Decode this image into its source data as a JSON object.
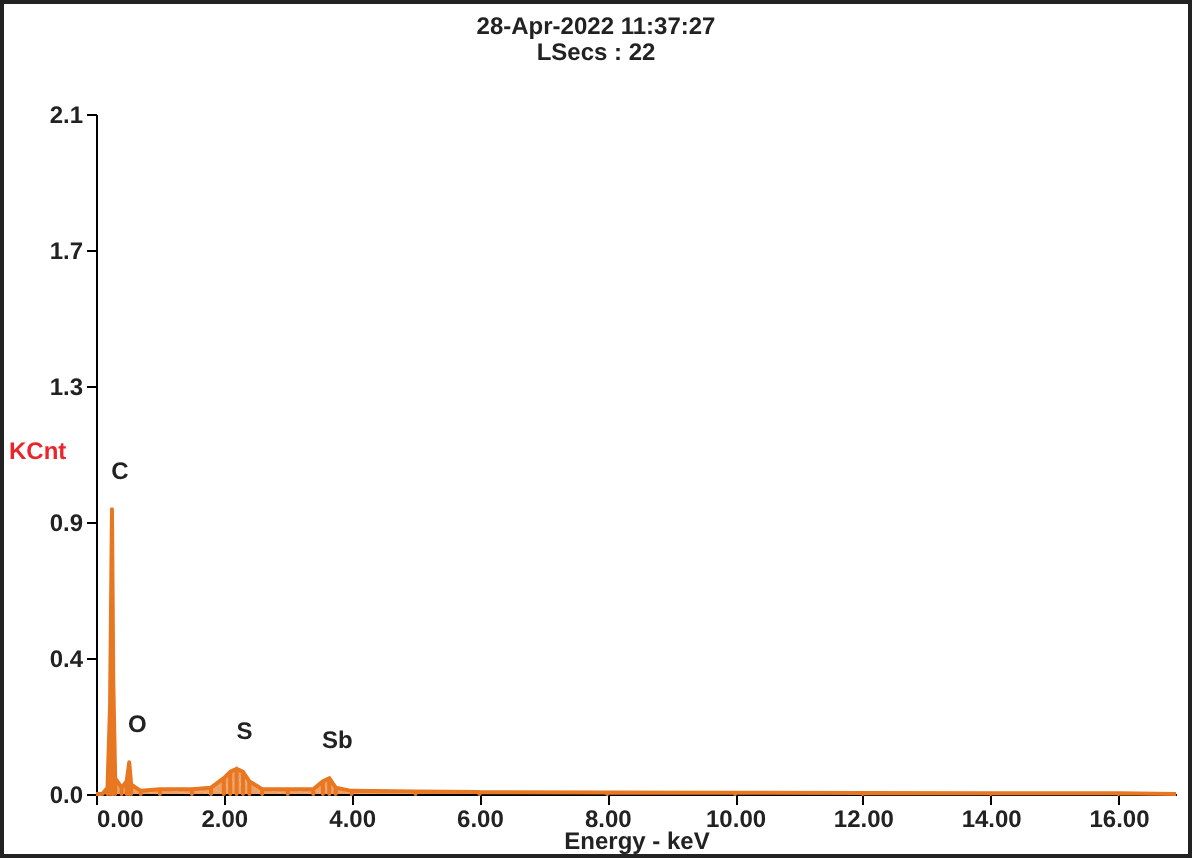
{
  "chart_data": {
    "type": "area",
    "title": "28-Apr-2022 11:37:27",
    "subtitle": "LSecs : 22",
    "xlabel": "Energy - keV",
    "ylabel": "KCnt",
    "x": [
      0,
      0.1,
      0.18,
      0.22,
      0.25,
      0.27,
      0.3,
      0.4,
      0.48,
      0.52,
      0.55,
      0.7,
      1.0,
      1.5,
      1.8,
      2.0,
      2.1,
      2.2,
      2.3,
      2.4,
      2.6,
      3.0,
      3.4,
      3.55,
      3.65,
      3.75,
      4.0,
      5.0,
      6.0,
      8.0,
      10.0,
      12.0,
      14.0,
      16.0,
      16.9
    ],
    "series": [
      {
        "color": "#e87722",
        "values": [
          0,
          0,
          0.02,
          0.28,
          0.9,
          0.36,
          0.05,
          0.02,
          0.04,
          0.1,
          0.03,
          0.01,
          0.015,
          0.015,
          0.02,
          0.05,
          0.07,
          0.08,
          0.07,
          0.04,
          0.015,
          0.015,
          0.015,
          0.04,
          0.05,
          0.02,
          0.01,
          0.008,
          0.006,
          0.005,
          0.004,
          0.003,
          0.002,
          0.002,
          0
        ]
      }
    ],
    "xlim": [
      0,
      16.9
    ],
    "xticks": [
      {
        "value": 0,
        "label": "0.00"
      },
      {
        "value": 2,
        "label": "2.00"
      },
      {
        "value": 4,
        "label": "4.00"
      },
      {
        "value": 6,
        "label": "6.00"
      },
      {
        "value": 8,
        "label": "8.00"
      },
      {
        "value": 10,
        "label": "10.00"
      },
      {
        "value": 12,
        "label": "12.00"
      },
      {
        "value": 14,
        "label": "14.00"
      },
      {
        "value": 16,
        "label": "16.00"
      }
    ],
    "ylim": [
      0,
      2.15
    ],
    "yticks": [
      {
        "value": 0,
        "label": "0.0"
      },
      {
        "value": 0.43,
        "label": "0.4"
      },
      {
        "value": 0.86,
        "label": "0.9"
      },
      {
        "value": 1.29,
        "label": "1.3"
      },
      {
        "value": 1.72,
        "label": "1.7"
      },
      {
        "value": 2.15,
        "label": "2.1"
      }
    ],
    "annotations": [
      {
        "text": "C",
        "x": 0.25,
        "y": 0.9
      },
      {
        "text": "O",
        "x": 0.52,
        "y": 0.1
      },
      {
        "text": "S",
        "x": 2.2,
        "y": 0.08
      },
      {
        "text": "Sb",
        "x": 3.65,
        "y": 0.05
      }
    ],
    "grid": false,
    "marker": "none"
  }
}
